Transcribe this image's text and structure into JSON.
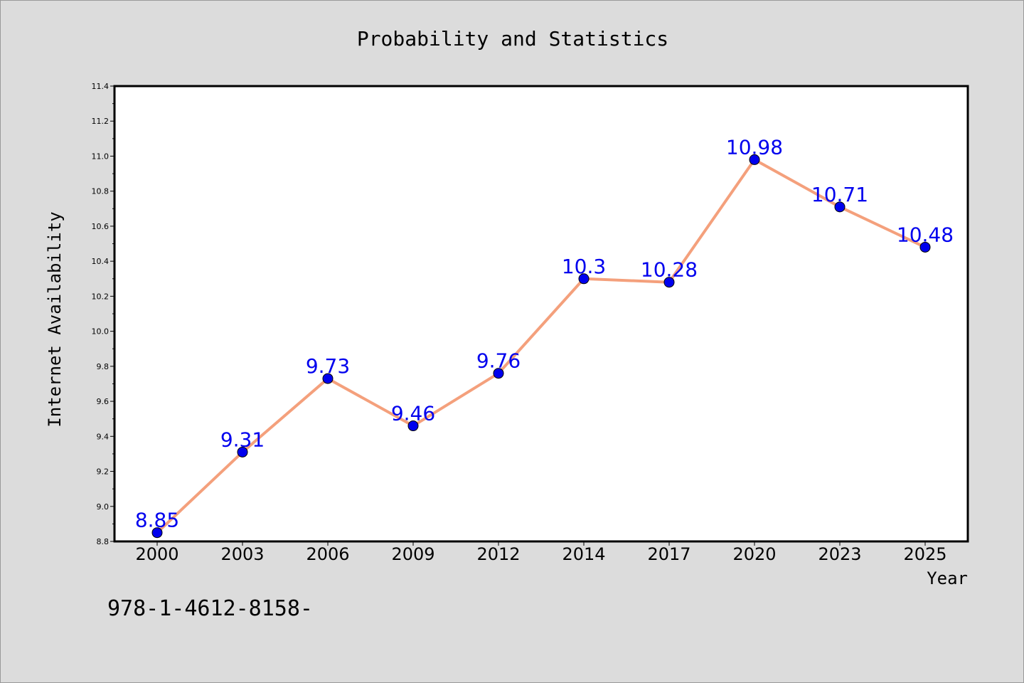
{
  "chart_data": {
    "type": "line",
    "title": "Probability and Statistics",
    "xlabel": "Year",
    "ylabel": "Internet Availability",
    "categories": [
      "2000",
      "2003",
      "2006",
      "2009",
      "2012",
      "2014",
      "2017",
      "2020",
      "2023",
      "2025"
    ],
    "values": [
      8.85,
      9.31,
      9.73,
      9.46,
      9.76,
      10.3,
      10.28,
      10.98,
      10.71,
      10.48
    ],
    "data_labels": [
      "8.85",
      "9.31",
      "9.73",
      "9.46",
      "9.76",
      "10.3",
      "10.28",
      "10.98",
      "10.71",
      "10.48"
    ],
    "ylim": [
      8.8,
      11.4
    ],
    "yticks": [
      "8.8",
      "9.0",
      "9.2",
      "9.4",
      "9.6",
      "9.8",
      "10.0",
      "10.2",
      "10.4",
      "10.6",
      "10.8",
      "11.0",
      "11.2",
      "11.4"
    ],
    "grid": false,
    "line_color": "#f4a07c",
    "marker_color": "#0000ee",
    "label_color": "#0000ee"
  },
  "footer_text": "978-1-4612-8158-"
}
